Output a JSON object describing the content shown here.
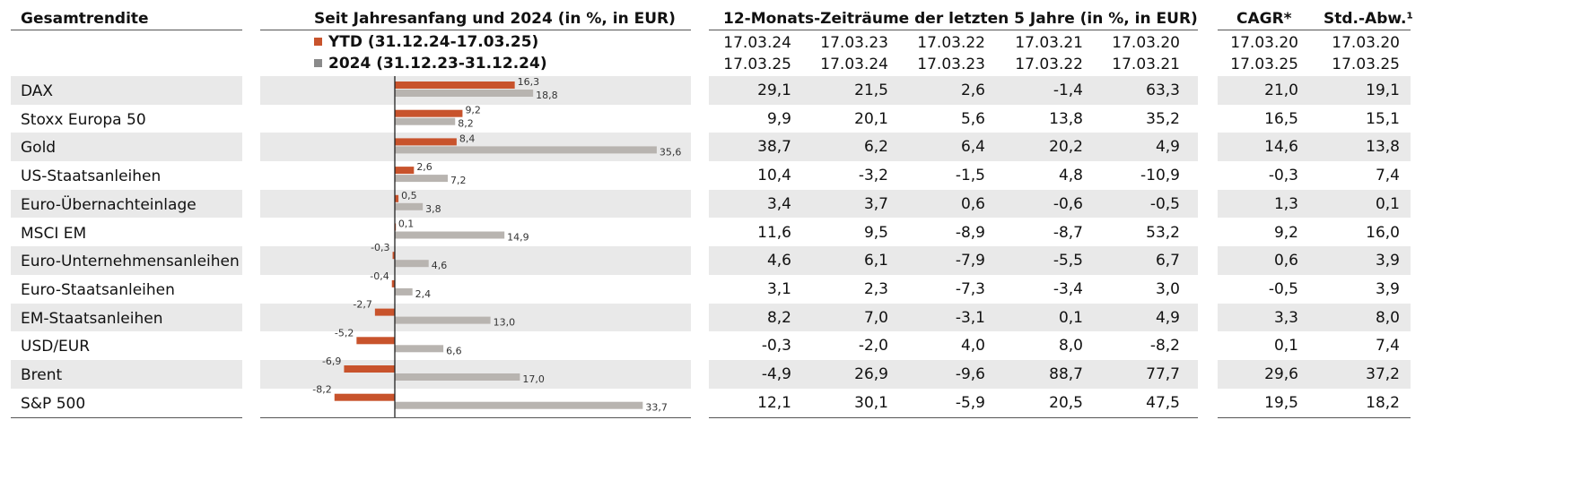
{
  "headers": {
    "left": "Gesamtrendite",
    "chart": "Seit Jahresanfang und 2024 (in %, in EUR)",
    "periods": "12-Monats-Zeiträume der letzten 5 Jahre (in %, in EUR)",
    "cagr": "CAGR*",
    "std": "Std.-Abw.¹"
  },
  "legend": {
    "ytd": "YTD (31.12.24-17.03.25)",
    "y2024": "2024 (31.12.23-31.12.24)"
  },
  "period_cols": [
    {
      "from": "17.03.24",
      "to": "17.03.25"
    },
    {
      "from": "17.03.23",
      "to": "17.03.24"
    },
    {
      "from": "17.03.22",
      "to": "17.03.23"
    },
    {
      "from": "17.03.21",
      "to": "17.03.22"
    },
    {
      "from": "17.03.20",
      "to": "17.03.21"
    }
  ],
  "cagr_cols": [
    {
      "from": "17.03.20",
      "to": "17.03.25"
    },
    {
      "from": "17.03.20",
      "to": "17.03.25"
    }
  ],
  "colors": {
    "ytd": "#c8532c",
    "y2024": "#b8b4b0",
    "band": "#e9e9e9"
  },
  "rows": [
    {
      "name": "DAX",
      "periods": [
        "29,1",
        "21,5",
        "2,6",
        "-1,4",
        "63,3"
      ],
      "cagr": "21,0",
      "std": "19,1"
    },
    {
      "name": "Stoxx Europa 50",
      "periods": [
        "9,9",
        "20,1",
        "5,6",
        "13,8",
        "35,2"
      ],
      "cagr": "16,5",
      "std": "15,1"
    },
    {
      "name": "Gold",
      "periods": [
        "38,7",
        "6,2",
        "6,4",
        "20,2",
        "4,9"
      ],
      "cagr": "14,6",
      "std": "13,8"
    },
    {
      "name": "US-Staatsanleihen",
      "periods": [
        "10,4",
        "-3,2",
        "-1,5",
        "4,8",
        "-10,9"
      ],
      "cagr": "-0,3",
      "std": "7,4"
    },
    {
      "name": "Euro-Übernachteinlage",
      "periods": [
        "3,4",
        "3,7",
        "0,6",
        "-0,6",
        "-0,5"
      ],
      "cagr": "1,3",
      "std": "0,1"
    },
    {
      "name": "MSCI EM",
      "periods": [
        "11,6",
        "9,5",
        "-8,9",
        "-8,7",
        "53,2"
      ],
      "cagr": "9,2",
      "std": "16,0"
    },
    {
      "name": "Euro-Unternehmensanleihen",
      "periods": [
        "4,6",
        "6,1",
        "-7,9",
        "-5,5",
        "6,7"
      ],
      "cagr": "0,6",
      "std": "3,9"
    },
    {
      "name": "Euro-Staatsanleihen",
      "periods": [
        "3,1",
        "2,3",
        "-7,3",
        "-3,4",
        "3,0"
      ],
      "cagr": "-0,5",
      "std": "3,9"
    },
    {
      "name": "EM-Staatsanleihen",
      "periods": [
        "8,2",
        "7,0",
        "-3,1",
        "0,1",
        "4,9"
      ],
      "cagr": "3,3",
      "std": "8,0"
    },
    {
      "name": "USD/EUR",
      "periods": [
        "-0,3",
        "-2,0",
        "4,0",
        "8,0",
        "-8,2"
      ],
      "cagr": "0,1",
      "std": "7,4"
    },
    {
      "name": "Brent",
      "periods": [
        "-4,9",
        "26,9",
        "-9,6",
        "88,7",
        "77,7"
      ],
      "cagr": "29,6",
      "std": "37,2"
    },
    {
      "name": "S&P 500",
      "periods": [
        "12,1",
        "30,1",
        "-5,9",
        "20,5",
        "47,5"
      ],
      "cagr": "19,5",
      "std": "18,2"
    }
  ],
  "chart_data": {
    "type": "bar",
    "orientation": "horizontal",
    "title": "Seit Jahresanfang und 2024 (in %, in EUR)",
    "categories": [
      "DAX",
      "Stoxx Europa 50",
      "Gold",
      "US-Staatsanleihen",
      "Euro-Übernachteinlage",
      "MSCI EM",
      "Euro-Unternehmensanleihen",
      "Euro-Staatsanleihen",
      "EM-Staatsanleihen",
      "USD/EUR",
      "Brent",
      "S&P 500"
    ],
    "series": [
      {
        "name": "YTD (31.12.24-17.03.25)",
        "values": [
          16.3,
          9.2,
          8.4,
          2.6,
          0.5,
          0.1,
          -0.3,
          -0.4,
          -2.7,
          -5.2,
          -6.9,
          -8.2
        ],
        "labels": [
          "16,3",
          "9,2",
          "8,4",
          "2,6",
          "0,5",
          "0,1",
          "-0,3",
          "-0,4",
          "-2,7",
          "-5,2",
          "-6,9",
          "-8,2"
        ]
      },
      {
        "name": "2024 (31.12.23-31.12.24)",
        "values": [
          18.8,
          8.2,
          35.6,
          7.2,
          3.8,
          14.9,
          4.6,
          2.4,
          13.0,
          6.6,
          17.0,
          33.7
        ],
        "labels": [
          "18,8",
          "8,2",
          "35,6",
          "7,2",
          "3,8",
          "14,9",
          "4,6",
          "2,4",
          "13,0",
          "6,6",
          "17,0",
          "33,7"
        ]
      }
    ],
    "xlim": [
      -10,
      37
    ]
  }
}
